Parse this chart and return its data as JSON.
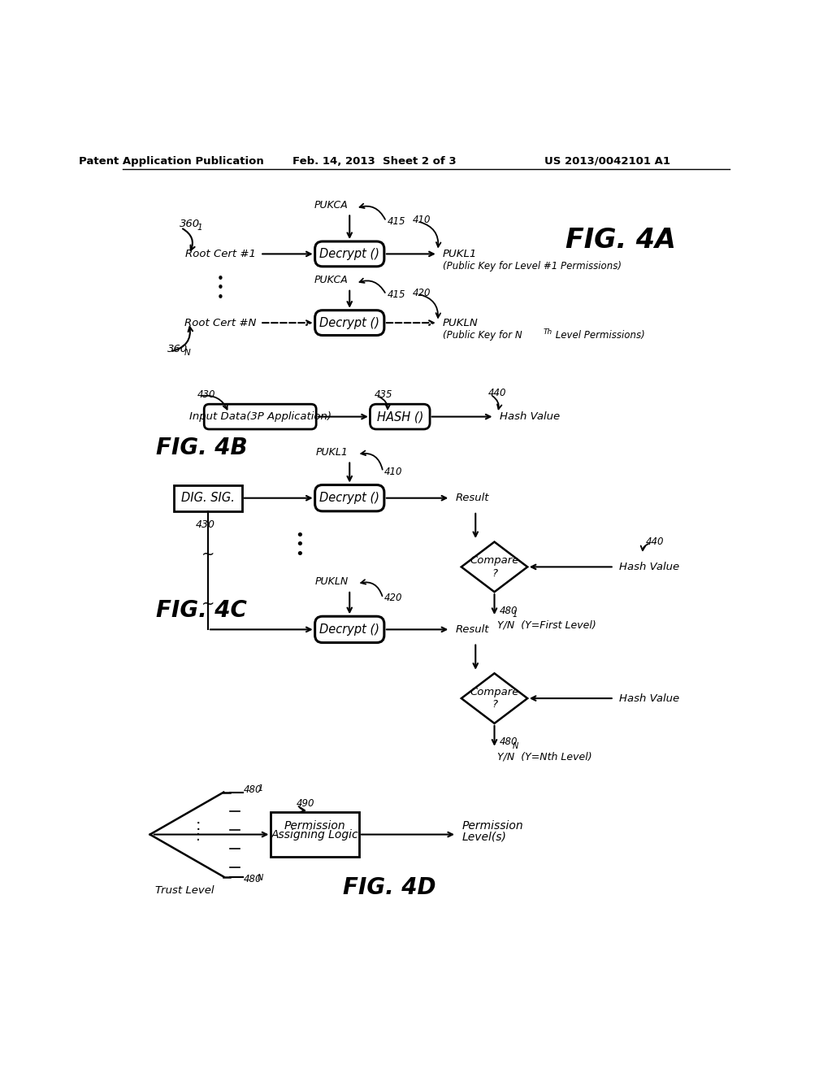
{
  "bg_color": "#ffffff",
  "header_left": "Patent Application Publication",
  "header_mid": "Feb. 14, 2013  Sheet 2 of 3",
  "header_right": "US 2013/0042101 A1"
}
